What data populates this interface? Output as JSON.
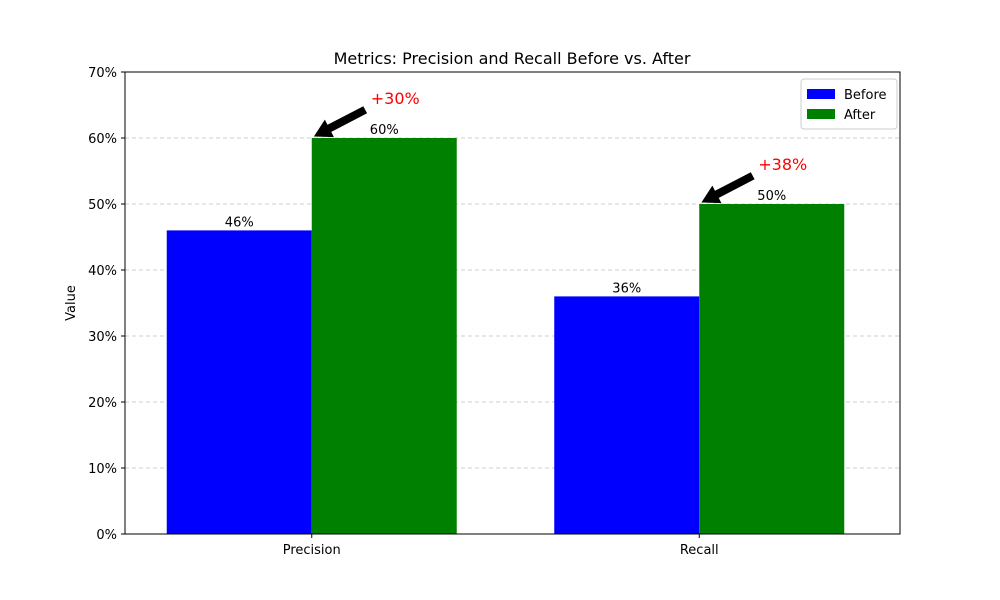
{
  "chart_data": {
    "type": "bar",
    "title": "Metrics: Precision and Recall Before vs. After",
    "xlabel": "",
    "ylabel": "Value",
    "categories": [
      "Precision",
      "Recall"
    ],
    "series": [
      {
        "name": "Before",
        "values": [
          46,
          36
        ],
        "color": "#0000ff",
        "labels": [
          "46%",
          "36%"
        ]
      },
      {
        "name": "After",
        "values": [
          60,
          50
        ],
        "color": "#008000",
        "labels": [
          "60%",
          "50%"
        ]
      }
    ],
    "ylim": [
      0,
      70
    ],
    "yticks": [
      0,
      10,
      20,
      30,
      40,
      50,
      60,
      70
    ],
    "ytick_labels": [
      "0%",
      "10%",
      "20%",
      "30%",
      "40%",
      "50%",
      "60%",
      "70%"
    ],
    "grid": "y-dashed",
    "legend": "upper-right",
    "annotations": [
      {
        "text": "+30%",
        "category": "Precision",
        "color": "#ff0000"
      },
      {
        "text": "+38%",
        "category": "Recall",
        "color": "#ff0000"
      }
    ]
  }
}
